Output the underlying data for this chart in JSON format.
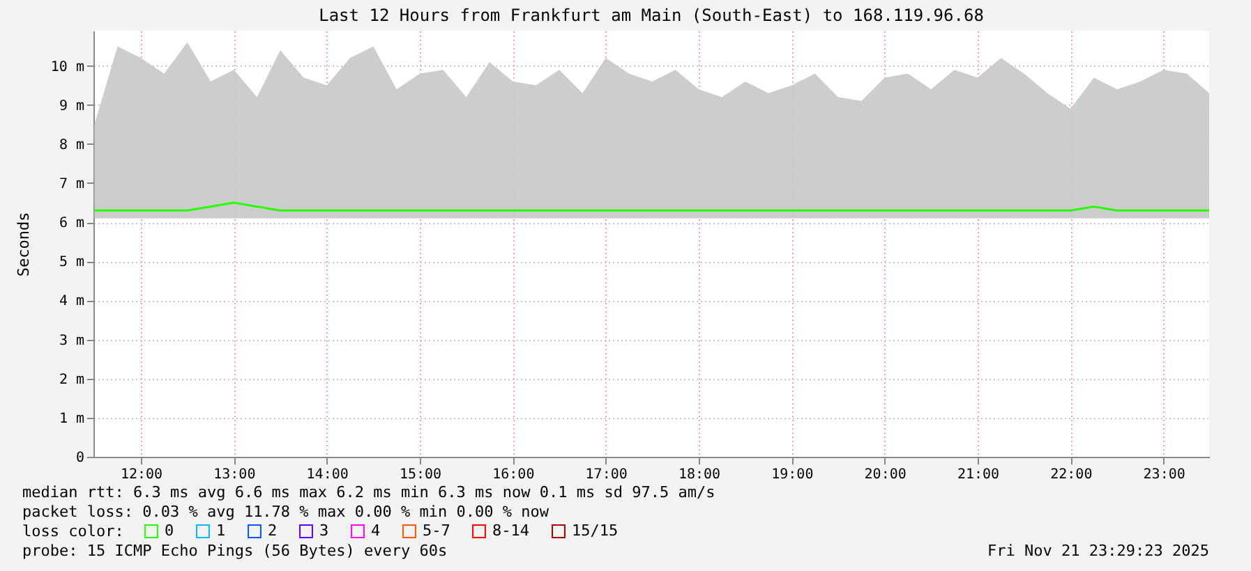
{
  "chart_data": {
    "type": "line",
    "title": "Last 12 Hours from Frankfurt am Main (South-East) to 168.119.96.68",
    "ylabel": "Seconds",
    "legend_title": "loss color:",
    "legend": "bottom",
    "x": [
      11.5,
      11.75,
      12,
      12.25,
      12.5,
      12.75,
      13,
      13.25,
      13.5,
      13.75,
      14,
      14.25,
      14.5,
      14.75,
      15,
      15.25,
      15.5,
      15.75,
      16,
      16.25,
      16.5,
      16.75,
      17,
      17.25,
      17.5,
      17.75,
      18,
      18.25,
      18.5,
      18.75,
      19,
      19.25,
      19.5,
      19.75,
      20,
      20.25,
      20.5,
      20.75,
      21,
      21.25,
      21.5,
      21.75,
      22,
      22.25,
      22.5,
      22.75,
      23,
      23.25,
      23.49
    ],
    "series": [
      {
        "name": "0",
        "color": "#26ff00",
        "values": [
          6.3,
          6.3,
          6.3,
          6.3,
          6.3,
          6.4,
          6.5,
          6.4,
          6.3,
          6.3,
          6.3,
          6.3,
          6.3,
          6.3,
          6.3,
          6.3,
          6.3,
          6.3,
          6.3,
          6.3,
          6.3,
          6.3,
          6.3,
          6.3,
          6.3,
          6.3,
          6.3,
          6.3,
          6.3,
          6.3,
          6.3,
          6.3,
          6.3,
          6.3,
          6.3,
          6.3,
          6.3,
          6.3,
          6.3,
          6.3,
          6.3,
          6.3,
          6.3,
          6.4,
          6.3,
          6.3,
          6.3,
          6.3,
          6.3
        ],
        "lower": [
          6.1,
          6.1,
          6.1,
          6.1,
          6.1,
          6.1,
          6.1,
          6.1,
          6.1,
          6.1,
          6.1,
          6.1,
          6.1,
          6.1,
          6.1,
          6.1,
          6.1,
          6.1,
          6.1,
          6.1,
          6.1,
          6.1,
          6.1,
          6.1,
          6.1,
          6.1,
          6.1,
          6.1,
          6.1,
          6.1,
          6.1,
          6.1,
          6.1,
          6.1,
          6.1,
          6.1,
          6.1,
          6.1,
          6.1,
          6.1,
          6.1,
          6.1,
          6.1,
          6.1,
          6.1,
          6.1,
          6.1,
          6.1,
          6.1
        ],
        "upper": [
          8.5,
          10.5,
          10.2,
          9.8,
          10.6,
          9.6,
          9.9,
          9.2,
          10.4,
          9.7,
          9.5,
          10.2,
          10.5,
          9.4,
          9.8,
          9.9,
          9.2,
          10.1,
          9.6,
          9.5,
          9.9,
          9.3,
          10.2,
          9.8,
          9.6,
          9.9,
          9.4,
          9.2,
          9.6,
          9.3,
          9.5,
          9.8,
          9.2,
          9.1,
          9.7,
          9.8,
          9.4,
          9.9,
          9.7,
          10.2,
          9.8,
          9.3,
          8.9,
          9.7,
          9.4,
          9.6,
          9.9,
          9.8,
          9.3
        ]
      },
      {
        "name": "1",
        "color": "#00b8ff",
        "values": [
          null,
          null,
          null,
          null,
          null,
          null,
          null,
          null,
          null,
          null,
          null,
          null,
          null,
          null,
          null,
          null,
          null,
          null,
          null,
          null,
          null,
          null,
          null,
          null,
          null,
          null,
          null,
          null,
          null,
          null,
          null,
          null,
          null,
          null,
          null,
          null,
          null,
          null,
          null,
          null,
          null,
          null,
          null,
          null,
          null,
          null,
          null,
          null,
          null
        ]
      },
      {
        "name": "2",
        "color": "#0059ff",
        "values": [
          null,
          null,
          null,
          null,
          null,
          null,
          null,
          null,
          null,
          null,
          null,
          null,
          null,
          null,
          null,
          null,
          null,
          null,
          null,
          null,
          null,
          null,
          null,
          null,
          null,
          null,
          null,
          null,
          null,
          null,
          null,
          null,
          null,
          null,
          null,
          null,
          null,
          null,
          null,
          null,
          null,
          null,
          null,
          null,
          null,
          null,
          null,
          null,
          null
        ]
      },
      {
        "name": "3",
        "color": "#5e00ff",
        "values": [
          null,
          null,
          null,
          null,
          null,
          null,
          null,
          null,
          null,
          null,
          null,
          null,
          null,
          null,
          null,
          null,
          null,
          null,
          null,
          null,
          null,
          null,
          null,
          null,
          null,
          null,
          null,
          null,
          null,
          null,
          null,
          null,
          null,
          null,
          null,
          null,
          null,
          null,
          null,
          null,
          null,
          null,
          null,
          null,
          null,
          null,
          null,
          null,
          null
        ]
      },
      {
        "name": "4",
        "color": "#ff00ff",
        "values": [
          null,
          null,
          null,
          null,
          null,
          null,
          null,
          null,
          null,
          null,
          null,
          null,
          null,
          null,
          null,
          null,
          null,
          null,
          null,
          null,
          null,
          null,
          null,
          null,
          null,
          null,
          null,
          null,
          null,
          null,
          null,
          null,
          null,
          null,
          null,
          null,
          null,
          null,
          null,
          null,
          null,
          null,
          null,
          null,
          null,
          null,
          null,
          null,
          null
        ]
      },
      {
        "name": "5-7",
        "color": "#ff5500",
        "values": [
          null,
          null,
          null,
          null,
          null,
          null,
          null,
          null,
          null,
          null,
          null,
          null,
          null,
          null,
          null,
          null,
          null,
          null,
          null,
          null,
          null,
          null,
          null,
          null,
          null,
          null,
          null,
          null,
          null,
          null,
          null,
          null,
          null,
          null,
          null,
          null,
          null,
          null,
          null,
          null,
          null,
          null,
          null,
          null,
          null,
          null,
          null,
          null,
          null
        ]
      },
      {
        "name": "8-14",
        "color": "#ff0000",
        "values": [
          null,
          null,
          null,
          null,
          null,
          null,
          null,
          null,
          null,
          null,
          null,
          null,
          null,
          null,
          null,
          null,
          null,
          null,
          null,
          null,
          null,
          null,
          null,
          null,
          null,
          null,
          null,
          null,
          null,
          null,
          null,
          null,
          null,
          null,
          null,
          null,
          null,
          null,
          null,
          null,
          null,
          null,
          null,
          null,
          null,
          null,
          null,
          null,
          null
        ]
      },
      {
        "name": "15/15",
        "color": "#a10000",
        "values": [
          null,
          null,
          null,
          null,
          null,
          null,
          null,
          null,
          null,
          null,
          null,
          null,
          null,
          null,
          null,
          null,
          null,
          null,
          null,
          null,
          null,
          null,
          null,
          null,
          null,
          null,
          null,
          null,
          null,
          null,
          null,
          null,
          null,
          null,
          null,
          null,
          null,
          null,
          null,
          null,
          null,
          null,
          null,
          null,
          null,
          null,
          null,
          null,
          null
        ]
      }
    ],
    "xlim": [
      11.49,
      23.49
    ],
    "xticks": [
      {
        "value": 12,
        "label": "12:00"
      },
      {
        "value": 13,
        "label": "13:00"
      },
      {
        "value": 14,
        "label": "14:00"
      },
      {
        "value": 15,
        "label": "15:00"
      },
      {
        "value": 16,
        "label": "16:00"
      },
      {
        "value": 17,
        "label": "17:00"
      },
      {
        "value": 18,
        "label": "18:00"
      },
      {
        "value": 19,
        "label": "19:00"
      },
      {
        "value": 20,
        "label": "20:00"
      },
      {
        "value": 21,
        "label": "21:00"
      },
      {
        "value": 22,
        "label": "22:00"
      },
      {
        "value": 23,
        "label": "23:00"
      }
    ],
    "ylim": [
      0,
      10.9
    ],
    "yticks": [
      0,
      {
        "value": 1,
        "label": "1 m"
      },
      {
        "value": 2,
        "label": "2 m"
      },
      {
        "value": 3,
        "label": "3 m"
      },
      {
        "value": 4,
        "label": "4 m"
      },
      {
        "value": 5,
        "label": "5 m"
      },
      {
        "value": 6,
        "label": "6 m"
      },
      {
        "value": 7,
        "label": "7 m"
      },
      {
        "value": 8,
        "label": "8 m"
      },
      {
        "value": 9,
        "label": "9 m"
      },
      {
        "value": 10,
        "label": "10 m"
      }
    ],
    "grid": true,
    "annotations": [
      "median rtt:  6.3 ms avg  6.6 ms max  6.2 ms min  6.3 ms now  0.1 ms sd  97.5   am/s",
      "packet loss: 0.03 % avg  11.78 % max  0.00 % min  0.00 % now",
      "probe:       15 ICMP Echo Pings (56 Bytes) every 60s",
      "Fri Nov 21 23:29:23 2025"
    ]
  }
}
